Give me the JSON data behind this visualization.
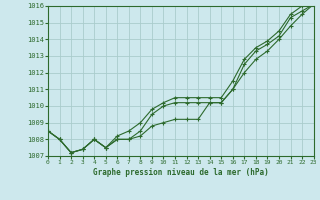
{
  "title": "Graphe pression niveau de la mer (hPa)",
  "bg_color": "#cde8ed",
  "grid_color": "#aacccc",
  "line_color": "#2d6a2d",
  "x_ticks": [
    0,
    1,
    2,
    3,
    4,
    5,
    6,
    7,
    8,
    9,
    10,
    11,
    12,
    13,
    14,
    15,
    16,
    17,
    18,
    19,
    20,
    21,
    22,
    23
  ],
  "y_min": 1007,
  "y_max": 1016,
  "y_ticks": [
    1007,
    1008,
    1009,
    1010,
    1011,
    1012,
    1013,
    1014,
    1015,
    1016
  ],
  "series1": [
    1008.5,
    1008.0,
    1007.2,
    1007.4,
    1008.0,
    1007.5,
    1008.0,
    1008.0,
    1008.2,
    1008.8,
    1009.0,
    1009.2,
    1009.2,
    1009.2,
    1010.2,
    1010.2,
    1011.0,
    1012.0,
    1012.8,
    1013.3,
    1014.0,
    1014.8,
    1015.5,
    1016.1
  ],
  "series2": [
    1008.5,
    1008.0,
    1007.2,
    1007.4,
    1008.0,
    1007.5,
    1008.0,
    1008.0,
    1008.5,
    1009.5,
    1010.0,
    1010.2,
    1010.2,
    1010.2,
    1010.2,
    1010.2,
    1011.0,
    1012.5,
    1013.3,
    1013.7,
    1014.2,
    1015.3,
    1015.7,
    1016.1
  ],
  "series3": [
    1008.5,
    1008.0,
    1007.2,
    1007.4,
    1008.0,
    1007.5,
    1008.2,
    1008.5,
    1009.0,
    1009.8,
    1010.2,
    1010.5,
    1010.5,
    1010.5,
    1010.5,
    1010.5,
    1011.5,
    1012.8,
    1013.5,
    1013.9,
    1014.5,
    1015.5,
    1016.0,
    1016.2
  ]
}
